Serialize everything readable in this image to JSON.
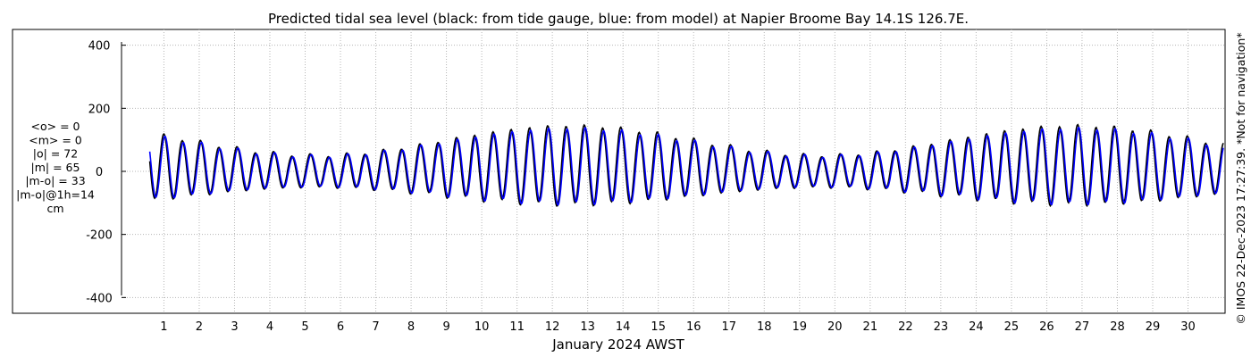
{
  "chart_data": {
    "type": "line",
    "title": "Predicted tidal sea level (black: from tide gauge, blue: from model) at Napier Broome Bay 14.1S 126.7E.",
    "xlabel": "January 2024 AWST",
    "ylabel": "",
    "ylim": [
      -450,
      450
    ],
    "xlim": [
      -0.2,
      31.05
    ],
    "yticks": [
      400,
      200,
      0,
      -200,
      -400
    ],
    "yticklabels": [
      "400",
      "200",
      "0",
      "-200",
      "-400"
    ],
    "xticks": [
      1,
      2,
      3,
      4,
      5,
      6,
      7,
      8,
      9,
      10,
      11,
      12,
      13,
      14,
      15,
      16,
      17,
      18,
      19,
      20,
      21,
      22,
      23,
      24,
      25,
      26,
      27,
      28,
      29,
      30
    ],
    "xticklabels": [
      "1",
      "2",
      "3",
      "4",
      "5",
      "6",
      "7",
      "8",
      "9",
      "10",
      "11",
      "12",
      "13",
      "14",
      "15",
      "16",
      "17",
      "18",
      "19",
      "20",
      "21",
      "22",
      "23",
      "24",
      "25",
      "26",
      "27",
      "28",
      "29",
      "30"
    ],
    "grid": true,
    "colors": {
      "gauge": "#000000",
      "model": "#0000ff"
    },
    "series": [
      {
        "name": "from tide gauge",
        "color": "#000000",
        "model": "tidal-harmonic",
        "start_day": 0.6,
        "end_day": 31.0,
        "spring_tide_days": [
          12.5,
          26.8
        ],
        "spring_high_cm": 180,
        "spring_low_cm": -140,
        "neap_tide_days": [
          5.2,
          19.9
        ],
        "neap_high_cm": 65,
        "neap_low_cm": -65
      },
      {
        "name": "from model",
        "color": "#0000ff",
        "model": "tidal-harmonic",
        "start_day": 0.6,
        "end_day": 31.0,
        "spring_tide_days": [
          12.5,
          26.8
        ],
        "spring_high_cm": 170,
        "spring_low_cm": -135,
        "neap_tide_days": [
          5.2,
          19.9
        ],
        "neap_high_cm": 62,
        "neap_low_cm": -62
      }
    ]
  },
  "stats": {
    "lines": [
      "<o> = 0",
      "<m> = 0",
      "|o| = 72",
      "|m| = 65",
      "|m-o| = 33",
      "|m-o|@1h=14",
      "cm"
    ]
  },
  "credit": "© IMOS 22-Dec-2023 17:27:39. *Not for navigation*"
}
